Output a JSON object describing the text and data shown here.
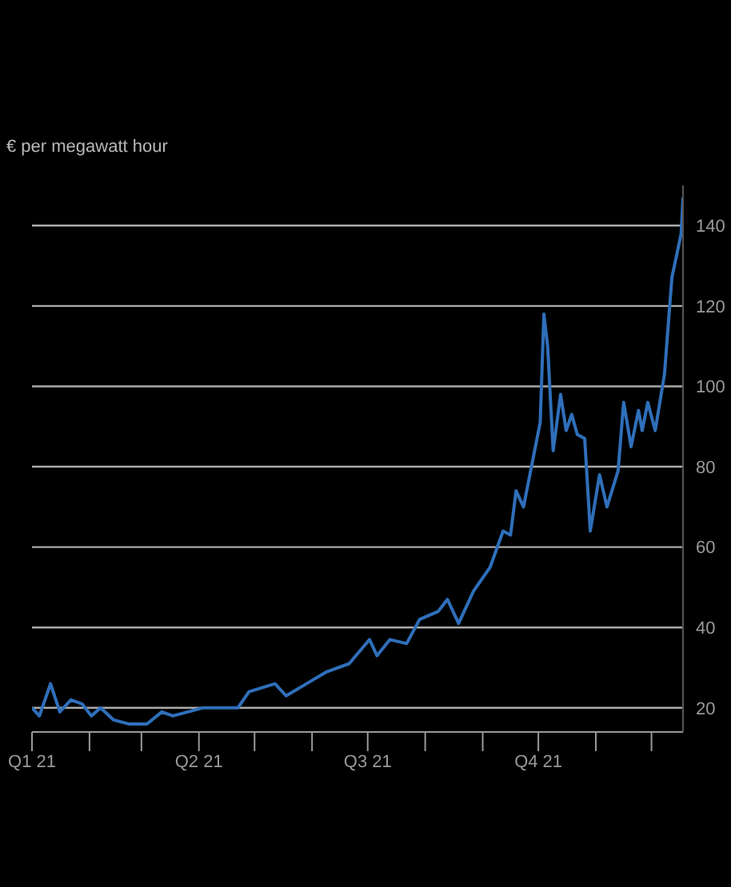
{
  "chart_data": {
    "type": "line",
    "ylabel": "€ per megawatt hour",
    "x": [
      "2021-01-01",
      "2021-01-05",
      "2021-01-11",
      "2021-01-16",
      "2021-01-22",
      "2021-01-28",
      "2021-02-02",
      "2021-02-07",
      "2021-02-14",
      "2021-02-22",
      "2021-03-04",
      "2021-03-12",
      "2021-03-18",
      "2021-04-03",
      "2021-04-14",
      "2021-04-22",
      "2021-04-28",
      "2021-05-12",
      "2021-05-18",
      "2021-05-29",
      "2021-06-09",
      "2021-06-21",
      "2021-07-02",
      "2021-07-06",
      "2021-07-13",
      "2021-07-22",
      "2021-07-29",
      "2021-08-08",
      "2021-08-13",
      "2021-08-19",
      "2021-08-27",
      "2021-09-05",
      "2021-09-12",
      "2021-09-16",
      "2021-09-19",
      "2021-09-23",
      "2021-09-29",
      "2021-10-02",
      "2021-10-04",
      "2021-10-06",
      "2021-10-09",
      "2021-10-13",
      "2021-10-16",
      "2021-10-19",
      "2021-10-22",
      "2021-10-26",
      "2021-10-29",
      "2021-11-03",
      "2021-11-07",
      "2021-11-13",
      "2021-11-16",
      "2021-11-20",
      "2021-11-24",
      "2021-11-26",
      "2021-11-29",
      "2021-12-03",
      "2021-12-08",
      "2021-12-12",
      "2021-12-17",
      "2021-12-18"
    ],
    "series": [
      {
        "color": "#2f6fba",
        "values": [
          20,
          18,
          26,
          19,
          22,
          21,
          18,
          20,
          17,
          16,
          16,
          19,
          18,
          20,
          20,
          20,
          24,
          26,
          23,
          26,
          29,
          31,
          37,
          33,
          37,
          36,
          42,
          44,
          47,
          41,
          49,
          55,
          64,
          63,
          74,
          70,
          84,
          91,
          118,
          110,
          84,
          98,
          89,
          93,
          88,
          87,
          64,
          78,
          70,
          79,
          96,
          85,
          94,
          89,
          96,
          89,
          103,
          127,
          138,
          147
        ]
      }
    ],
    "xlim": [
      "2021-01-01",
      "2021-12-18"
    ],
    "xticks": [
      {
        "value": "2021-01-01",
        "label": "Q1 21"
      },
      {
        "value": "2021-02-01",
        "label": null
      },
      {
        "value": "2021-03-01",
        "label": null
      },
      {
        "value": "2021-04-01",
        "label": "Q2 21"
      },
      {
        "value": "2021-05-01",
        "label": null
      },
      {
        "value": "2021-06-01",
        "label": null
      },
      {
        "value": "2021-07-01",
        "label": "Q3 21"
      },
      {
        "value": "2021-08-01",
        "label": null
      },
      {
        "value": "2021-09-01",
        "label": null
      },
      {
        "value": "2021-10-01",
        "label": "Q4 21"
      },
      {
        "value": "2021-11-01",
        "label": null
      },
      {
        "value": "2021-12-01",
        "label": null
      }
    ],
    "ylim": [
      14,
      150
    ],
    "yticks": [
      20,
      40,
      60,
      80,
      100,
      120,
      140
    ],
    "grid": "y",
    "legend": false,
    "marker": "none",
    "line_style": "solid"
  }
}
